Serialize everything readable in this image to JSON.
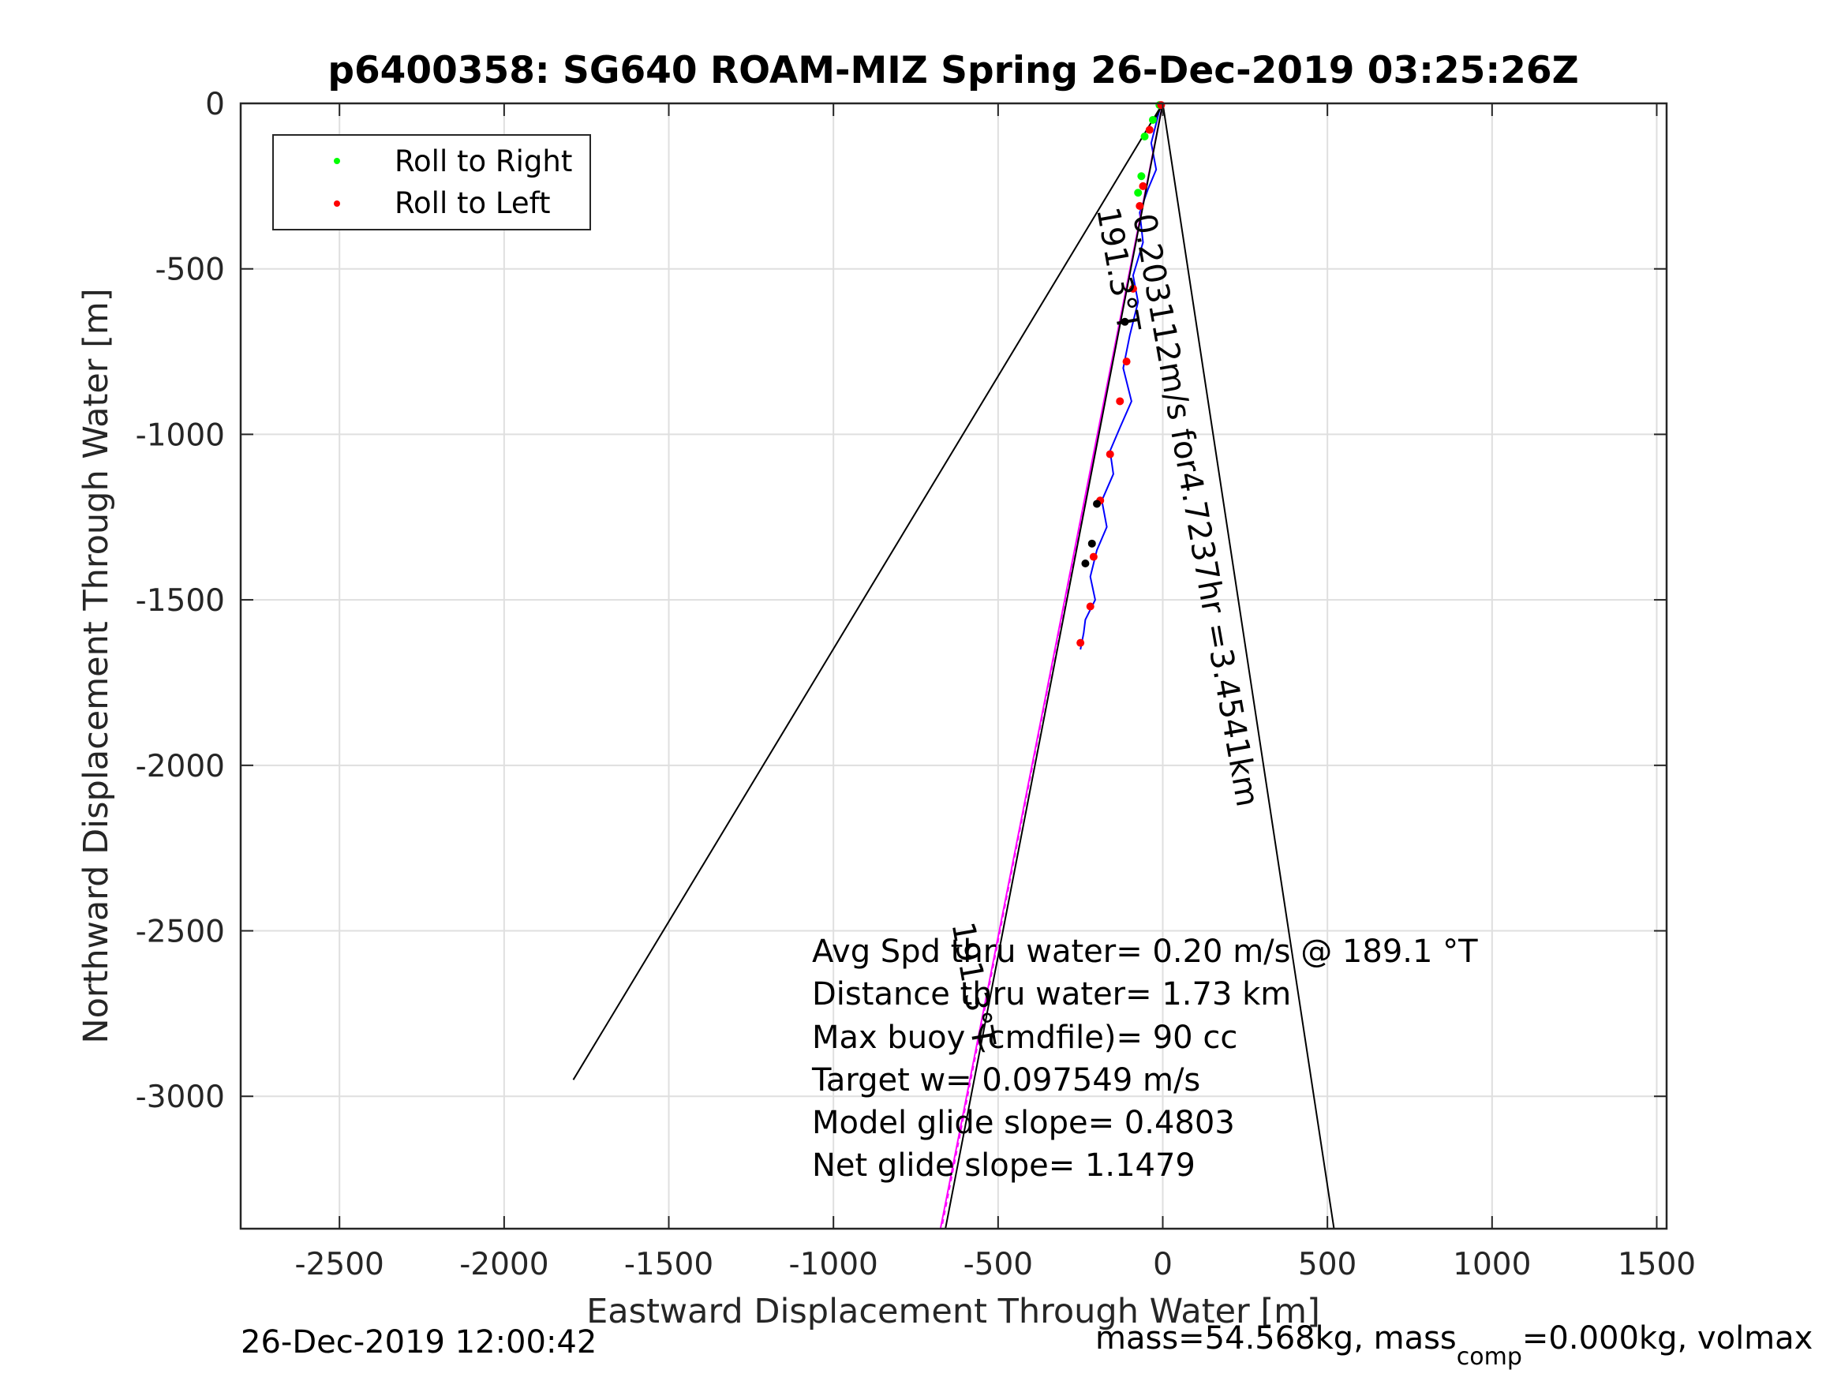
{
  "chart_data": {
    "type": "line",
    "title": "p6400358: SG640 ROAM-MIZ Spring 26-Dec-2019 03:25:26Z",
    "xlabel": "Eastward Displacement Through Water [m]",
    "ylabel": "Northward Displacement Through Water [m]",
    "xlim": [
      -2800,
      1530
    ],
    "ylim": [
      -3400,
      0
    ],
    "xticks": [
      -2500,
      -2000,
      -1500,
      -1000,
      -500,
      0,
      500,
      1000,
      1500
    ],
    "yticks": [
      0,
      -500,
      -1000,
      -1500,
      -2000,
      -2500,
      -3000
    ],
    "xtick_labels": [
      "-2500",
      "-2000",
      "-1500",
      "-1000",
      "-500",
      "0",
      "500",
      "1000",
      "1500"
    ],
    "ytick_labels": [
      "0",
      "-500",
      "-1000",
      "-1500",
      "-2000",
      "-2500",
      "-3000"
    ],
    "grid": true,
    "legend": {
      "placement": "top-left",
      "entries": [
        {
          "name": "Roll to Right",
          "color": "#00ff00"
        },
        {
          "name": "Roll to Left",
          "color": "#ff0000"
        }
      ]
    },
    "series": [
      {
        "role": "track",
        "color": "#0000ff",
        "x": [
          -5,
          -20,
          -35,
          -20,
          -45,
          -70,
          -60,
          -90,
          -75,
          -100,
          -120,
          -95,
          -130,
          -160,
          -150,
          -185,
          -170,
          -200,
          -220,
          -205,
          -235,
          -240,
          -250
        ],
        "y": [
          0,
          -60,
          -120,
          -200,
          -260,
          -330,
          -420,
          -520,
          -600,
          -700,
          -800,
          -900,
          -980,
          -1050,
          -1120,
          -1200,
          -1280,
          -1350,
          -1430,
          -1500,
          -1560,
          -1600,
          -1650
        ]
      },
      {
        "role": "heading-line",
        "color": "#ff00ff",
        "x": [
          0,
          -675
        ],
        "y": [
          0,
          -3400
        ]
      },
      {
        "role": "heading-line-2",
        "color": "#ff00ff",
        "x": [
          0,
          -670
        ],
        "y": [
          0,
          -3390
        ]
      },
      {
        "role": "envelope-left",
        "color": "#000000",
        "x": [
          0,
          -1790
        ],
        "y": [
          0,
          -2950
        ]
      },
      {
        "role": "envelope-right",
        "color": "#000000",
        "x": [
          0,
          520
        ],
        "y": [
          0,
          -3400
        ]
      },
      {
        "role": "envelope-left-short",
        "color": "#000000",
        "x": [
          0,
          -30
        ],
        "y": [
          0,
          -60
        ]
      },
      {
        "role": "current-line",
        "color": "#000000",
        "x": [
          0,
          -660
        ],
        "y": [
          0,
          -3400
        ]
      }
    ],
    "points_right": {
      "color": "#00ff00",
      "x": [
        -10,
        -30,
        -55,
        -65,
        -75
      ],
      "y": [
        -5,
        -50,
        -100,
        -220,
        -270
      ]
    },
    "points_left": {
      "color": "#ff0000",
      "x": [
        -5,
        -40,
        -60,
        -70,
        -90,
        -110,
        -130,
        -160,
        -190,
        -210,
        -220,
        -250
      ],
      "y": [
        -5,
        -80,
        -250,
        -310,
        -560,
        -780,
        -900,
        -1060,
        -1200,
        -1370,
        -1520,
        -1630
      ]
    },
    "points_black": {
      "color": "#000000",
      "x": [
        -115,
        -200,
        -215,
        -235
      ],
      "y": [
        -660,
        -1210,
        -1330,
        -1390
      ]
    },
    "annotations": [
      {
        "text": "0.203112m/s for4.7237hr =3.4541km",
        "x": -90,
        "y": -340,
        "rotation": 80
      },
      {
        "text": "191.3°T",
        "x": -200,
        "y": -320,
        "rotation": 80
      },
      {
        "text": "191.3°T",
        "x": -640,
        "y": -2480,
        "rotation": 80
      }
    ],
    "stats": [
      "Avg Spd thru water=  0.20 m/s @ 189.1 °T",
      "Distance thru water=  1.73 km",
      "Max buoy (cmdfile)= 90 cc",
      "Target w= 0.097549 m/s",
      "Model glide slope= 0.4803",
      "Net glide slope= 1.1479"
    ]
  },
  "footer": {
    "left": "26-Dec-2019 12:00:42",
    "right_main": "mass=54.568kg, mass",
    "right_sub": "comp",
    "right_tail": "=0.000kg, volmax"
  }
}
